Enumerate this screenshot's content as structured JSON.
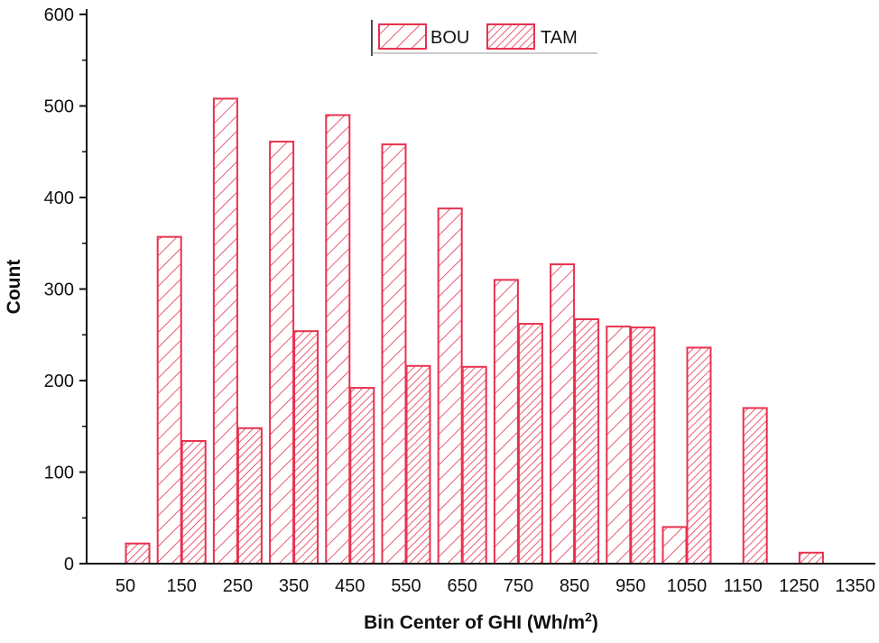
{
  "chart_data": {
    "type": "bar",
    "title": "",
    "xlabel": "Bin Center of GHI (Wh/m",
    "xlabel_superscript": "2",
    "xlabel_suffix": ")",
    "ylabel": "Count",
    "ylim": [
      0,
      600
    ],
    "yticks": [
      0,
      100,
      200,
      300,
      400,
      500,
      600
    ],
    "categories": [
      "50",
      "150",
      "250",
      "350",
      "450",
      "550",
      "650",
      "750",
      "850",
      "950",
      "1050",
      "1150",
      "1250",
      "1350"
    ],
    "series": [
      {
        "name": "BOU",
        "values": [
          0,
          357,
          508,
          461,
          490,
          458,
          388,
          310,
          327,
          259,
          40,
          0,
          0,
          0
        ]
      },
      {
        "name": "TAM",
        "values": [
          22,
          134,
          148,
          254,
          192,
          216,
          215,
          262,
          267,
          258,
          236,
          170,
          12,
          0
        ]
      }
    ],
    "legend_position": "top-center",
    "colors": {
      "bar": "#e8314f",
      "axis": "#111111"
    }
  }
}
